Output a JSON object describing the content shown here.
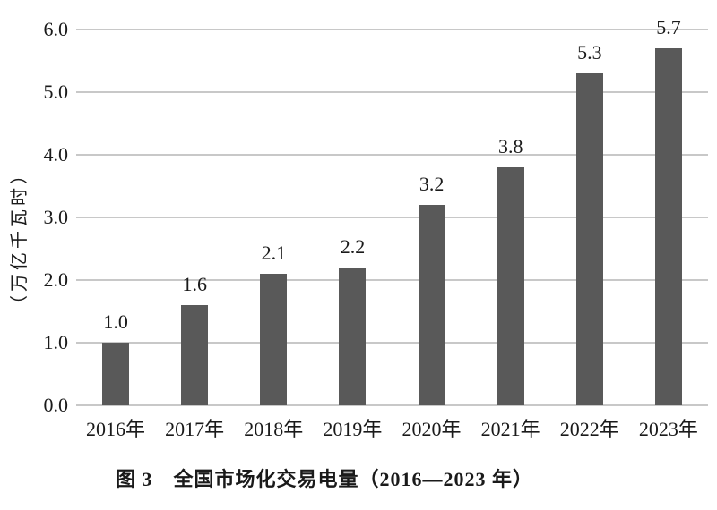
{
  "chart_data": {
    "type": "bar",
    "categories": [
      "2016年",
      "2017年",
      "2018年",
      "2019年",
      "2020年",
      "2021年",
      "2022年",
      "2023年"
    ],
    "values": [
      1.0,
      1.6,
      2.1,
      2.2,
      3.2,
      3.8,
      5.3,
      5.7
    ],
    "value_labels": [
      "1.0",
      "1.6",
      "2.1",
      "2.2",
      "3.2",
      "3.8",
      "5.3",
      "5.7"
    ],
    "title": "图 3　全国市场化交易电量（2016—2023 年）",
    "xlabel": "",
    "ylabel": "（万亿千瓦时）",
    "ylim": [
      0,
      6
    ],
    "yticks": [
      "0.0",
      "1.0",
      "2.0",
      "3.0",
      "4.0",
      "5.0",
      "6.0"
    ],
    "grid": true,
    "legend": "none",
    "colors": {
      "bar": "#595959",
      "gridline": "#c8c8c8",
      "text": "#1a1a1a",
      "background": "#ffffff"
    }
  }
}
